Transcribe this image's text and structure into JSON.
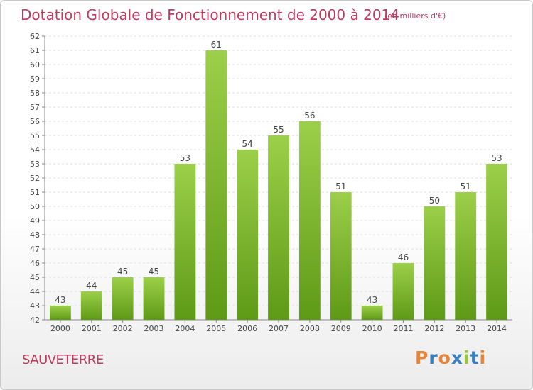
{
  "title": "Dotation Globale de Fonctionnement de 2000 à 2014",
  "unit_note": "(en milliers d'€)",
  "commune": "SAUVETERRE",
  "logo": {
    "text": "Proxiti",
    "colors": [
      "#e8833a",
      "#3a7fc1",
      "#e8833a",
      "#3a7fc1",
      "#9bc53d",
      "#3a7fc1",
      "#e8833a"
    ]
  },
  "colors": {
    "accent": "#c0395e",
    "bar_top": "#9ccf4a",
    "bar_bottom": "#5e9a16"
  },
  "chart_data": {
    "type": "bar",
    "title": "Dotation Globale de Fonctionnement de 2000 à 2014",
    "categories": [
      "2000",
      "2001",
      "2002",
      "2003",
      "2004",
      "2005",
      "2006",
      "2007",
      "2008",
      "2009",
      "2010",
      "2011",
      "2012",
      "2013",
      "2014"
    ],
    "values": [
      43,
      44,
      45,
      45,
      53,
      61,
      54,
      55,
      56,
      51,
      43,
      46,
      50,
      51,
      53
    ],
    "ylim": [
      42,
      62
    ],
    "yticks": [
      42,
      43,
      44,
      45,
      46,
      47,
      48,
      49,
      50,
      51,
      52,
      53,
      54,
      55,
      56,
      57,
      58,
      59,
      60,
      61,
      62
    ],
    "xlabel": "",
    "ylabel": "",
    "grid": true,
    "data_labels": true
  }
}
